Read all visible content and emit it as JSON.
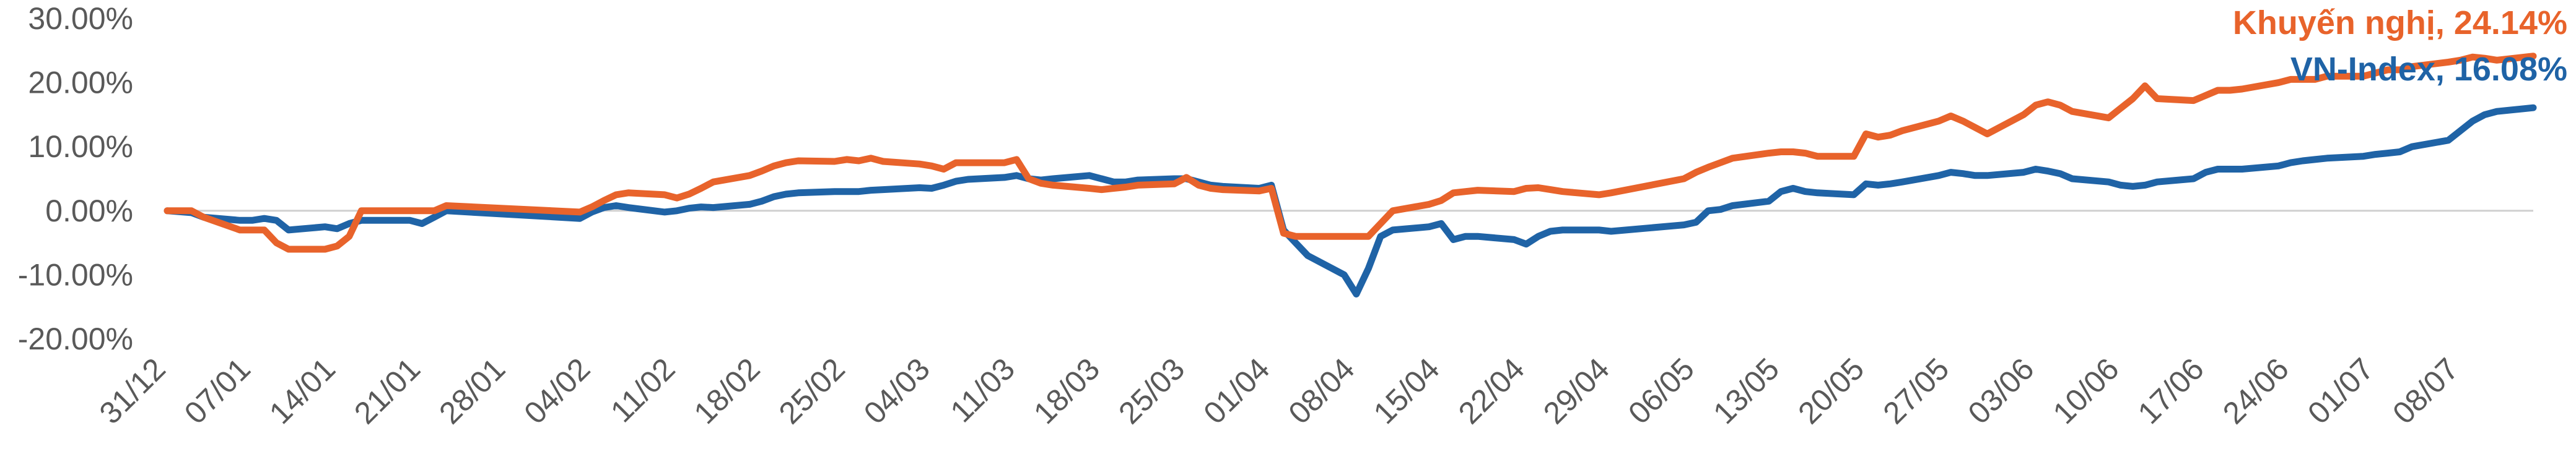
{
  "chart_data": {
    "type": "line",
    "title": "",
    "xlabel": "",
    "ylabel": "",
    "ylim": [
      -0.2,
      0.3
    ],
    "y_ticks": [
      "30.00%",
      "20.00%",
      "10.00%",
      "0.00%",
      "-10.00%",
      "-20.00%"
    ],
    "x_ticks": [
      "31/12",
      "07/01",
      "14/01",
      "21/01",
      "28/01",
      "04/02",
      "11/02",
      "18/02",
      "25/02",
      "04/03",
      "11/03",
      "18/03",
      "25/03",
      "01/04",
      "08/04",
      "15/04",
      "22/04",
      "29/04",
      "06/05",
      "13/05",
      "20/05",
      "27/05",
      "03/06",
      "10/06",
      "17/06",
      "24/06",
      "01/07",
      "08/07"
    ],
    "grid": false,
    "zero_line": true,
    "legend_placement": "top-right",
    "series": [
      {
        "name": "Khuyến nghị",
        "label": "Khuyến nghị, 24.14%",
        "color": "#E8632B",
        "points": [
          [
            "31/12",
            0.0
          ],
          [
            "02/01",
            0.0
          ],
          [
            "03/01",
            -0.01
          ],
          [
            "06/01",
            -0.03
          ],
          [
            "07/01",
            -0.03
          ],
          [
            "08/01",
            -0.03
          ],
          [
            "09/01",
            -0.05
          ],
          [
            "10/01",
            -0.06
          ],
          [
            "13/01",
            -0.06
          ],
          [
            "14/01",
            -0.055
          ],
          [
            "15/01",
            -0.04
          ],
          [
            "16/01",
            0.0
          ],
          [
            "17/01",
            0.0
          ],
          [
            "20/01",
            0.0
          ],
          [
            "21/01",
            0.0
          ],
          [
            "22/01",
            0.0
          ],
          [
            "23/01",
            0.008
          ],
          [
            "03/02",
            -0.002
          ],
          [
            "04/02",
            0.006
          ],
          [
            "05/02",
            0.016
          ],
          [
            "06/02",
            0.025
          ],
          [
            "07/02",
            0.028
          ],
          [
            "10/02",
            0.025
          ],
          [
            "11/02",
            0.02
          ],
          [
            "12/02",
            0.026
          ],
          [
            "13/02",
            0.035
          ],
          [
            "14/02",
            0.045
          ],
          [
            "17/02",
            0.055
          ],
          [
            "18/02",
            0.062
          ],
          [
            "19/02",
            0.07
          ],
          [
            "20/02",
            0.075
          ],
          [
            "21/02",
            0.078
          ],
          [
            "24/02",
            0.077
          ],
          [
            "25/02",
            0.08
          ],
          [
            "26/02",
            0.078
          ],
          [
            "27/02",
            0.082
          ],
          [
            "28/02",
            0.077
          ],
          [
            "03/03",
            0.073
          ],
          [
            "04/03",
            0.07
          ],
          [
            "05/03",
            0.065
          ],
          [
            "06/03",
            0.075
          ],
          [
            "07/03",
            0.075
          ],
          [
            "10/03",
            0.075
          ],
          [
            "11/03",
            0.08
          ],
          [
            "12/03",
            0.05
          ],
          [
            "13/03",
            0.043
          ],
          [
            "14/03",
            0.04
          ],
          [
            "17/03",
            0.035
          ],
          [
            "18/03",
            0.033
          ],
          [
            "19/03",
            0.035
          ],
          [
            "20/03",
            0.037
          ],
          [
            "21/03",
            0.04
          ],
          [
            "24/03",
            0.042
          ],
          [
            "25/03",
            0.052
          ],
          [
            "26/03",
            0.04
          ],
          [
            "27/03",
            0.035
          ],
          [
            "28/03",
            0.033
          ],
          [
            "31/03",
            0.031
          ],
          [
            "01/04",
            0.035
          ],
          [
            "02/04",
            -0.035
          ],
          [
            "03/04",
            -0.04
          ],
          [
            "04/04",
            -0.04
          ],
          [
            "07/04",
            -0.04
          ],
          [
            "08/04",
            -0.04
          ],
          [
            "09/04",
            -0.04
          ],
          [
            "10/04",
            -0.02
          ],
          [
            "11/04",
            0.0
          ],
          [
            "14/04",
            0.01
          ],
          [
            "15/04",
            0.016
          ],
          [
            "16/04",
            0.028
          ],
          [
            "17/04",
            0.03
          ],
          [
            "18/04",
            0.032
          ],
          [
            "21/04",
            0.03
          ],
          [
            "22/04",
            0.035
          ],
          [
            "23/04",
            0.036
          ],
          [
            "24/04",
            0.033
          ],
          [
            "25/04",
            0.03
          ],
          [
            "28/04",
            0.025
          ],
          [
            "29/04",
            0.028
          ],
          [
            "05/05",
            0.05
          ],
          [
            "06/05",
            0.06
          ],
          [
            "07/05",
            0.068
          ],
          [
            "08/05",
            0.075
          ],
          [
            "09/05",
            0.082
          ],
          [
            "12/05",
            0.09
          ],
          [
            "13/05",
            0.092
          ],
          [
            "14/05",
            0.092
          ],
          [
            "15/05",
            0.09
          ],
          [
            "16/05",
            0.085
          ],
          [
            "19/05",
            0.085
          ],
          [
            "20/05",
            0.12
          ],
          [
            "21/05",
            0.115
          ],
          [
            "22/05",
            0.118
          ],
          [
            "23/05",
            0.125
          ],
          [
            "26/05",
            0.14
          ],
          [
            "27/05",
            0.148
          ],
          [
            "28/05",
            0.14
          ],
          [
            "29/05",
            0.13
          ],
          [
            "30/05",
            0.12
          ],
          [
            "02/06",
            0.15
          ],
          [
            "03/06",
            0.165
          ],
          [
            "04/06",
            0.17
          ],
          [
            "05/06",
            0.165
          ],
          [
            "06/06",
            0.155
          ],
          [
            "09/06",
            0.145
          ],
          [
            "10/06",
            0.16
          ],
          [
            "11/06",
            0.175
          ],
          [
            "12/06",
            0.195
          ],
          [
            "13/06",
            0.175
          ],
          [
            "16/06",
            0.172
          ],
          [
            "17/06",
            0.18
          ],
          [
            "18/06",
            0.188
          ],
          [
            "19/06",
            0.188
          ],
          [
            "20/06",
            0.19
          ],
          [
            "23/06",
            0.2
          ],
          [
            "24/06",
            0.205
          ],
          [
            "25/06",
            0.205
          ],
          [
            "26/06",
            0.205
          ],
          [
            "27/06",
            0.21
          ],
          [
            "30/06",
            0.21
          ],
          [
            "01/07",
            0.215
          ],
          [
            "02/07",
            0.22
          ],
          [
            "03/07",
            0.22
          ],
          [
            "04/07",
            0.225
          ],
          [
            "07/07",
            0.232
          ],
          [
            "08/07",
            0.235
          ],
          [
            "09/07",
            0.24
          ],
          [
            "10/07",
            0.238
          ],
          [
            "11/07",
            0.235
          ],
          [
            "14/07",
            0.2414
          ]
        ]
      },
      {
        "name": "VN-Index",
        "label": "VN-Index, 16.08%",
        "color": "#1F63A6",
        "points": [
          [
            "31/12",
            0.0
          ],
          [
            "02/01",
            -0.003
          ],
          [
            "03/01",
            -0.01
          ],
          [
            "06/01",
            -0.015
          ],
          [
            "07/01",
            -0.015
          ],
          [
            "08/01",
            -0.012
          ],
          [
            "09/01",
            -0.015
          ],
          [
            "10/01",
            -0.03
          ],
          [
            "13/01",
            -0.025
          ],
          [
            "14/01",
            -0.028
          ],
          [
            "15/01",
            -0.02
          ],
          [
            "16/01",
            -0.015
          ],
          [
            "17/01",
            -0.015
          ],
          [
            "20/01",
            -0.015
          ],
          [
            "21/01",
            -0.02
          ],
          [
            "22/01",
            -0.01
          ],
          [
            "23/01",
            0.0
          ],
          [
            "03/02",
            -0.012
          ],
          [
            "04/02",
            -0.002
          ],
          [
            "05/02",
            0.005
          ],
          [
            "06/02",
            0.008
          ],
          [
            "07/02",
            0.005
          ],
          [
            "10/02",
            -0.002
          ],
          [
            "11/02",
            0.0
          ],
          [
            "12/02",
            0.004
          ],
          [
            "13/02",
            0.006
          ],
          [
            "14/02",
            0.005
          ],
          [
            "17/02",
            0.01
          ],
          [
            "18/02",
            0.015
          ],
          [
            "19/02",
            0.022
          ],
          [
            "20/02",
            0.026
          ],
          [
            "21/02",
            0.028
          ],
          [
            "24/02",
            0.03
          ],
          [
            "25/02",
            0.03
          ],
          [
            "26/02",
            0.03
          ],
          [
            "27/02",
            0.032
          ],
          [
            "28/02",
            0.033
          ],
          [
            "03/03",
            0.036
          ],
          [
            "04/03",
            0.035
          ],
          [
            "05/03",
            0.04
          ],
          [
            "06/03",
            0.046
          ],
          [
            "07/03",
            0.049
          ],
          [
            "10/03",
            0.052
          ],
          [
            "11/03",
            0.055
          ],
          [
            "12/03",
            0.05
          ],
          [
            "13/03",
            0.048
          ],
          [
            "14/03",
            0.05
          ],
          [
            "17/03",
            0.055
          ],
          [
            "18/03",
            0.05
          ],
          [
            "19/03",
            0.045
          ],
          [
            "20/03",
            0.045
          ],
          [
            "21/03",
            0.048
          ],
          [
            "24/03",
            0.05
          ],
          [
            "25/03",
            0.05
          ],
          [
            "26/03",
            0.045
          ],
          [
            "27/03",
            0.04
          ],
          [
            "28/03",
            0.038
          ],
          [
            "31/03",
            0.035
          ],
          [
            "01/04",
            0.04
          ],
          [
            "02/04",
            -0.03
          ],
          [
            "03/04",
            -0.05
          ],
          [
            "04/04",
            -0.07
          ],
          [
            "07/04",
            -0.1
          ],
          [
            "08/04",
            -0.13
          ],
          [
            "09/04",
            -0.09
          ],
          [
            "10/04",
            -0.04
          ],
          [
            "11/04",
            -0.03
          ],
          [
            "14/04",
            -0.025
          ],
          [
            "15/04",
            -0.02
          ],
          [
            "16/04",
            -0.045
          ],
          [
            "17/04",
            -0.04
          ],
          [
            "18/04",
            -0.04
          ],
          [
            "21/04",
            -0.045
          ],
          [
            "22/04",
            -0.052
          ],
          [
            "23/04",
            -0.04
          ],
          [
            "24/04",
            -0.032
          ],
          [
            "25/04",
            -0.03
          ],
          [
            "28/04",
            -0.03
          ],
          [
            "29/04",
            -0.032
          ],
          [
            "05/05",
            -0.022
          ],
          [
            "06/05",
            -0.018
          ],
          [
            "07/05",
            0.0
          ],
          [
            "08/05",
            0.002
          ],
          [
            "09/05",
            0.008
          ],
          [
            "12/05",
            0.015
          ],
          [
            "13/05",
            0.03
          ],
          [
            "14/05",
            0.035
          ],
          [
            "15/05",
            0.03
          ],
          [
            "16/05",
            0.028
          ],
          [
            "19/05",
            0.025
          ],
          [
            "20/05",
            0.042
          ],
          [
            "21/05",
            0.04
          ],
          [
            "22/05",
            0.042
          ],
          [
            "23/05",
            0.045
          ],
          [
            "26/05",
            0.055
          ],
          [
            "27/05",
            0.06
          ],
          [
            "28/05",
            0.058
          ],
          [
            "29/05",
            0.055
          ],
          [
            "30/05",
            0.055
          ],
          [
            "02/06",
            0.06
          ],
          [
            "03/06",
            0.065
          ],
          [
            "04/06",
            0.062
          ],
          [
            "05/06",
            0.058
          ],
          [
            "06/06",
            0.05
          ],
          [
            "09/06",
            0.045
          ],
          [
            "10/06",
            0.04
          ],
          [
            "11/06",
            0.038
          ],
          [
            "12/06",
            0.04
          ],
          [
            "13/06",
            0.045
          ],
          [
            "16/06",
            0.05
          ],
          [
            "17/06",
            0.06
          ],
          [
            "18/06",
            0.065
          ],
          [
            "19/06",
            0.065
          ],
          [
            "20/06",
            0.065
          ],
          [
            "23/06",
            0.07
          ],
          [
            "24/06",
            0.075
          ],
          [
            "25/06",
            0.078
          ],
          [
            "26/06",
            0.08
          ],
          [
            "27/06",
            0.082
          ],
          [
            "30/06",
            0.085
          ],
          [
            "01/07",
            0.088
          ],
          [
            "02/07",
            0.09
          ],
          [
            "03/07",
            0.092
          ],
          [
            "04/07",
            0.1
          ],
          [
            "07/07",
            0.11
          ],
          [
            "08/07",
            0.125
          ],
          [
            "09/07",
            0.14
          ],
          [
            "10/07",
            0.15
          ],
          [
            "11/07",
            0.155
          ],
          [
            "14/07",
            0.1608
          ]
        ]
      }
    ]
  }
}
